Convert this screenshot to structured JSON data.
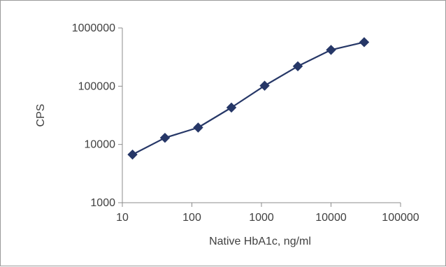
{
  "chart_data": {
    "type": "line",
    "title": "",
    "xlabel": "Native HbA1c, ng/ml",
    "ylabel": "CPS",
    "x_scale": "log",
    "y_scale": "log",
    "xlim": [
      10,
      100000
    ],
    "ylim": [
      1000,
      1000000
    ],
    "x_ticks": [
      10,
      100,
      1000,
      10000,
      100000
    ],
    "y_ticks": [
      1000,
      10000,
      100000,
      1000000
    ],
    "x_tick_labels": [
      "10",
      "100",
      "1000",
      "10000",
      "100000"
    ],
    "y_tick_labels": [
      "1000",
      "10000",
      "100000",
      "1000000"
    ],
    "grid": false,
    "legend": "none",
    "series": [
      {
        "marker": "diamond",
        "color": "#263767",
        "x": [
          14,
          41,
          123,
          370,
          1111,
          3333,
          10000,
          30000
        ],
        "y": [
          6700,
          13000,
          19500,
          43000,
          102000,
          220000,
          420000,
          570000
        ]
      }
    ]
  }
}
